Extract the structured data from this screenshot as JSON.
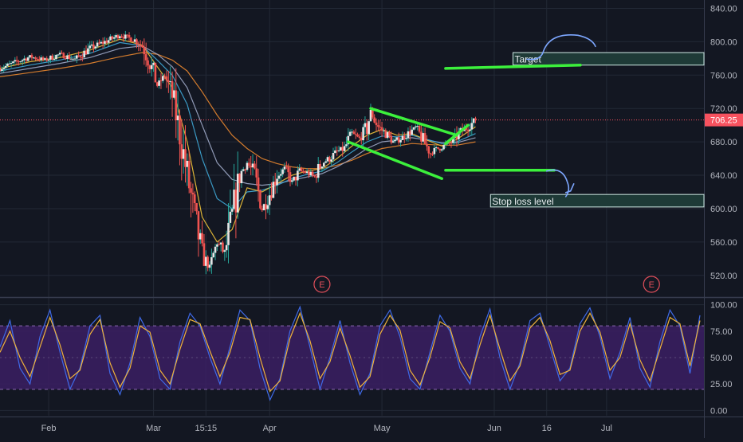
{
  "colors": {
    "background": "#131722",
    "grid": "#232936",
    "axis_text": "#b2b5be",
    "candle_up": "#26a69a",
    "candle_down": "#ef5350",
    "candle_body_up": "#e6e6e6",
    "ema_fast": "#f2c43a",
    "ema_mid": "#3fa7d6",
    "ema_slow": "#9ea9c7",
    "ema_long": "#e8862f",
    "price_line": "#f7525f",
    "price_tag": "#f7525f",
    "draw_green": "#3cf03c",
    "draw_blue": "#7da7ff",
    "zone_fill": "#1e3a37",
    "zone_border": "#cfe9e4",
    "stoch_band": "#3b1f63",
    "stoch_k": "#3f6ae8",
    "stoch_d": "#f0b33a",
    "event_marker": "#e04e5a"
  },
  "chart_data": {
    "type": "candlestick",
    "price_axis": {
      "ylim": [
        495,
        850
      ],
      "ticks": [
        "840.00",
        "800.00",
        "760.00",
        "720.00",
        "680.00",
        "640.00",
        "600.00",
        "560.00",
        "520.00"
      ],
      "tick_values": [
        840,
        800,
        760,
        720,
        680,
        640,
        600,
        560,
        520
      ]
    },
    "time_axis": {
      "labels": [
        "Feb",
        "Mar",
        "15:15",
        "Apr",
        "May",
        "Jun",
        "16",
        "Jul"
      ],
      "label_days": [
        21,
        49,
        63,
        80,
        110,
        140,
        154,
        170
      ],
      "xlim": [
        8,
        196
      ]
    },
    "last_price": 706.25,
    "last_price_label": "706.25",
    "price_path": [
      [
        8,
        768
      ],
      [
        12,
        775
      ],
      [
        16,
        782
      ],
      [
        20,
        778
      ],
      [
        24,
        785
      ],
      [
        28,
        779
      ],
      [
        32,
        792
      ],
      [
        36,
        800
      ],
      [
        40,
        808
      ],
      [
        44,
        802
      ],
      [
        46,
        795
      ],
      [
        48,
        775
      ],
      [
        50,
        748
      ],
      [
        52,
        760
      ],
      [
        54,
        735
      ],
      [
        56,
        690
      ],
      [
        58,
        640
      ],
      [
        60,
        590
      ],
      [
        62,
        545
      ],
      [
        64,
        528
      ],
      [
        66,
        560
      ],
      [
        68,
        545
      ],
      [
        70,
        590
      ],
      [
        72,
        640
      ],
      [
        74,
        655
      ],
      [
        76,
        640
      ],
      [
        78,
        600
      ],
      [
        80,
        618
      ],
      [
        82,
        640
      ],
      [
        84,
        648
      ],
      [
        86,
        632
      ],
      [
        88,
        645
      ],
      [
        90,
        643
      ],
      [
        92,
        638
      ],
      [
        94,
        655
      ],
      [
        96,
        660
      ],
      [
        98,
        668
      ],
      [
        100,
        672
      ],
      [
        102,
        690
      ],
      [
        104,
        684
      ],
      [
        106,
        697
      ],
      [
        107,
        715
      ],
      [
        109,
        698
      ],
      [
        111,
        690
      ],
      [
        113,
        680
      ],
      [
        115,
        684
      ],
      [
        117,
        690
      ],
      [
        119,
        697
      ],
      [
        121,
        682
      ],
      [
        123,
        666
      ],
      [
        125,
        672
      ],
      [
        127,
        676
      ],
      [
        129,
        681
      ],
      [
        131,
        692
      ],
      [
        133,
        698
      ],
      [
        135,
        706.25
      ]
    ],
    "ema_fast": [
      [
        8,
        768
      ],
      [
        16,
        776
      ],
      [
        24,
        781
      ],
      [
        32,
        790
      ],
      [
        40,
        803
      ],
      [
        46,
        796
      ],
      [
        50,
        770
      ],
      [
        54,
        745
      ],
      [
        58,
        680
      ],
      [
        62,
        590
      ],
      [
        66,
        560
      ],
      [
        70,
        575
      ],
      [
        74,
        625
      ],
      [
        78,
        620
      ],
      [
        82,
        630
      ],
      [
        86,
        640
      ],
      [
        90,
        645
      ],
      [
        94,
        648
      ],
      [
        98,
        660
      ],
      [
        102,
        675
      ],
      [
        106,
        688
      ],
      [
        110,
        695
      ],
      [
        114,
        688
      ],
      [
        118,
        690
      ],
      [
        122,
        682
      ],
      [
        126,
        675
      ],
      [
        130,
        683
      ],
      [
        135,
        698
      ]
    ],
    "ema_mid": [
      [
        8,
        765
      ],
      [
        16,
        772
      ],
      [
        24,
        778
      ],
      [
        32,
        786
      ],
      [
        40,
        799
      ],
      [
        46,
        795
      ],
      [
        50,
        778
      ],
      [
        54,
        760
      ],
      [
        58,
        725
      ],
      [
        62,
        660
      ],
      [
        66,
        612
      ],
      [
        70,
        600
      ],
      [
        74,
        620
      ],
      [
        78,
        622
      ],
      [
        82,
        628
      ],
      [
        86,
        636
      ],
      [
        90,
        641
      ],
      [
        94,
        645
      ],
      [
        98,
        655
      ],
      [
        102,
        668
      ],
      [
        106,
        680
      ],
      [
        110,
        687
      ],
      [
        114,
        686
      ],
      [
        118,
        688
      ],
      [
        122,
        683
      ],
      [
        126,
        678
      ],
      [
        130,
        680
      ],
      [
        135,
        690
      ]
    ],
    "ema_slow": [
      [
        8,
        762
      ],
      [
        16,
        768
      ],
      [
        24,
        774
      ],
      [
        32,
        781
      ],
      [
        40,
        792
      ],
      [
        46,
        795
      ],
      [
        50,
        785
      ],
      [
        54,
        770
      ],
      [
        58,
        745
      ],
      [
        62,
        700
      ],
      [
        66,
        655
      ],
      [
        70,
        635
      ],
      [
        74,
        630
      ],
      [
        78,
        628
      ],
      [
        82,
        630
      ],
      [
        86,
        634
      ],
      [
        90,
        638
      ],
      [
        94,
        642
      ],
      [
        98,
        650
      ],
      [
        102,
        660
      ],
      [
        106,
        672
      ],
      [
        110,
        680
      ],
      [
        114,
        682
      ],
      [
        118,
        685
      ],
      [
        122,
        682
      ],
      [
        126,
        679
      ],
      [
        130,
        679
      ],
      [
        135,
        685
      ]
    ],
    "ema_long": [
      [
        8,
        758
      ],
      [
        16,
        763
      ],
      [
        24,
        768
      ],
      [
        32,
        774
      ],
      [
        40,
        782
      ],
      [
        46,
        787
      ],
      [
        50,
        785
      ],
      [
        54,
        778
      ],
      [
        58,
        765
      ],
      [
        62,
        740
      ],
      [
        66,
        712
      ],
      [
        70,
        688
      ],
      [
        74,
        672
      ],
      [
        78,
        660
      ],
      [
        82,
        654
      ],
      [
        86,
        650
      ],
      [
        90,
        648
      ],
      [
        94,
        648
      ],
      [
        98,
        652
      ],
      [
        102,
        658
      ],
      [
        106,
        666
      ],
      [
        110,
        672
      ],
      [
        114,
        675
      ],
      [
        118,
        678
      ],
      [
        122,
        677
      ],
      [
        126,
        676
      ],
      [
        130,
        676
      ],
      [
        135,
        680
      ]
    ],
    "drawings": {
      "channel_upper": [
        [
          107,
          720
        ],
        [
          130,
          688
        ]
      ],
      "channel_lower": [
        [
          101,
          680
        ],
        [
          126,
          636
        ]
      ],
      "breakout_line": [
        [
          127,
          678
        ],
        [
          133,
          700
        ]
      ],
      "target_line": [
        [
          127,
          768
        ],
        [
          163,
          772
        ]
      ],
      "stop_loss_line": [
        [
          127,
          646
        ],
        [
          156,
          646
        ]
      ],
      "target_zone": {
        "x": [
          145,
          196
        ],
        "y": [
          772,
          787
        ]
      },
      "stop_zone": {
        "x": [
          139,
          196
        ],
        "y": [
          602,
          617
        ]
      }
    },
    "annotations": {
      "target_label": "Target",
      "stop_label": "Stop loss level",
      "earnings_marker_1": "E",
      "earnings_marker_2": "E",
      "earnings_days": [
        94,
        182
      ]
    },
    "oscillator": {
      "ylim": [
        -5,
        105
      ],
      "ticks": [
        "100.00",
        "75.00",
        "50.00",
        "25.00",
        "0.00"
      ],
      "tick_values": [
        100,
        75,
        50,
        25,
        0
      ],
      "band": [
        20,
        80
      ],
      "k_values": [
        60,
        85,
        40,
        25,
        70,
        95,
        55,
        20,
        40,
        80,
        90,
        35,
        15,
        45,
        88,
        70,
        30,
        20,
        65,
        92,
        80,
        50,
        25,
        60,
        95,
        85,
        40,
        10,
        30,
        75,
        98,
        60,
        20,
        50,
        85,
        45,
        15,
        35,
        80,
        95,
        70,
        30,
        20,
        55,
        90,
        75,
        40,
        25,
        70,
        96,
        50,
        20,
        45,
        85,
        92,
        60,
        28,
        40,
        82,
        97,
        70,
        30,
        55,
        88,
        40,
        22,
        65,
        95,
        80,
        35,
        90
      ],
      "d_values": [
        55,
        75,
        50,
        32,
        60,
        88,
        62,
        30,
        38,
        72,
        86,
        45,
        22,
        40,
        80,
        74,
        38,
        25,
        58,
        86,
        82,
        56,
        32,
        55,
        88,
        86,
        50,
        18,
        28,
        68,
        92,
        66,
        30,
        46,
        78,
        52,
        22,
        32,
        72,
        90,
        76,
        38,
        24,
        50,
        84,
        78,
        46,
        30,
        62,
        90,
        58,
        28,
        42,
        78,
        88,
        66,
        34,
        38,
        75,
        92,
        74,
        38,
        50,
        82,
        48,
        28,
        58,
        88,
        82,
        42,
        85
      ]
    }
  }
}
